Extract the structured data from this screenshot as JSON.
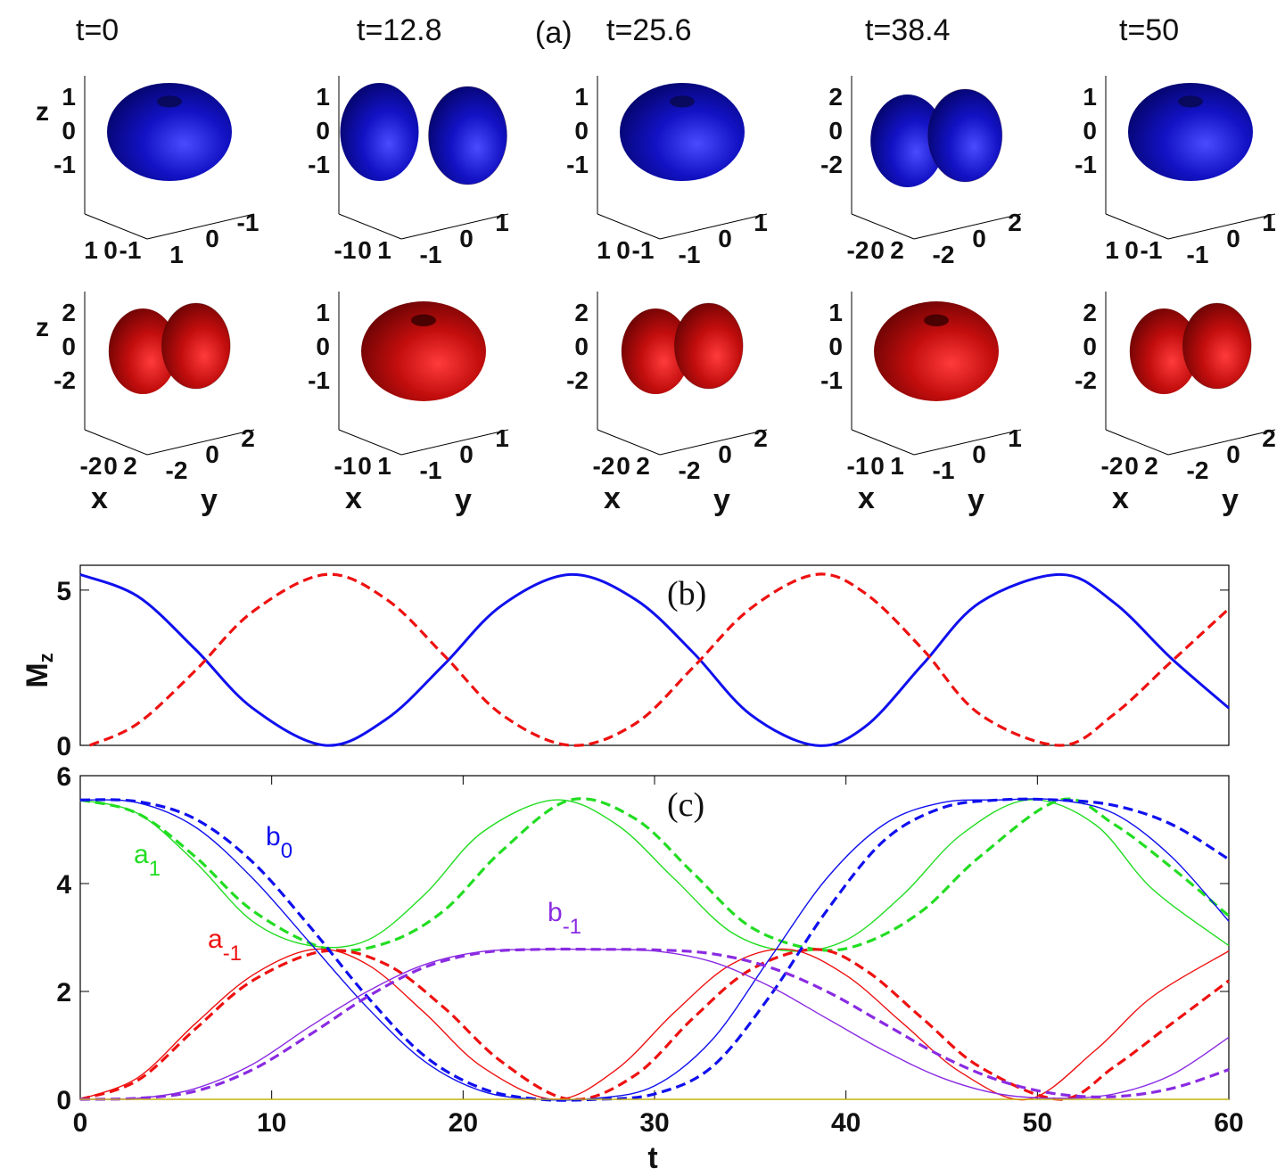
{
  "figure": {
    "panel_a_label": "(a)",
    "snapshot_times": [
      "t=0",
      "t=12.8",
      "t=25.6",
      "t=38.4",
      "t=50"
    ],
    "axis_names": {
      "x": "x",
      "y": "y",
      "z": "z"
    },
    "colors": {
      "component_1": "#1414c8",
      "component_2": "#c80f0f",
      "a1": "#22dd22",
      "a_minus1": "#ee1111",
      "b0": "#1010ee",
      "b_minus1": "#8a2be2"
    },
    "row1_shapes": [
      "torus",
      "two-lobes",
      "torus",
      "two-lobes",
      "torus"
    ],
    "row2_shapes": [
      "two-lobes",
      "torus",
      "two-lobes",
      "torus",
      "two-lobes"
    ],
    "row1_ticks": [
      {
        "z": [
          "1",
          "0",
          "-1"
        ],
        "x": [
          "1",
          "0",
          "-1"
        ],
        "y": [
          "1",
          "0",
          "-1"
        ]
      },
      {
        "z": [
          "1",
          "0",
          "-1"
        ],
        "x": [
          "-1",
          "0",
          "1"
        ],
        "y": [
          "-1",
          "0",
          "1"
        ]
      },
      {
        "z": [
          "1",
          "0",
          "-1"
        ],
        "x": [
          "1",
          "0",
          "-1"
        ],
        "y": [
          "-1",
          "0",
          "1"
        ]
      },
      {
        "z": [
          "2",
          "0",
          "-2"
        ],
        "x": [
          "-2",
          "0",
          "2"
        ],
        "y": [
          "-2",
          "0",
          "2"
        ]
      },
      {
        "z": [
          "1",
          "0",
          "-1"
        ],
        "x": [
          "1",
          "0",
          "-1"
        ],
        "y": [
          "-1",
          "0",
          "1"
        ]
      }
    ],
    "row2_ticks": [
      {
        "z": [
          "2",
          "0",
          "-2"
        ],
        "x": [
          "-2",
          "0",
          "2"
        ],
        "y": [
          "-2",
          "0",
          "2"
        ]
      },
      {
        "z": [
          "1",
          "0",
          "-1"
        ],
        "x": [
          "-1",
          "0",
          "1"
        ],
        "y": [
          "-1",
          "0",
          "1"
        ]
      },
      {
        "z": [
          "2",
          "0",
          "-2"
        ],
        "x": [
          "-2",
          "0",
          "2"
        ],
        "y": [
          "-2",
          "0",
          "2"
        ]
      },
      {
        "z": [
          "1",
          "0",
          "-1"
        ],
        "x": [
          "-1",
          "0",
          "1"
        ],
        "y": [
          "-1",
          "0",
          "1"
        ]
      },
      {
        "z": [
          "2",
          "0",
          "-2"
        ],
        "x": [
          "-2",
          "0",
          "2"
        ],
        "y": [
          "-2",
          "0",
          "2"
        ]
      }
    ]
  },
  "chart_data": [
    {
      "type": "line",
      "panel": "(b)",
      "ylabel": "M",
      "ylabel_sub": "z",
      "xlim": [
        0,
        60
      ],
      "ylim": [
        0,
        5.8
      ],
      "yticks": [
        0,
        5
      ],
      "series": [
        {
          "name": "M_z component 1 (solid blue)",
          "style": "solid",
          "color": "#1010ee",
          "x": [
            0,
            3,
            6,
            9,
            12.8,
            16,
            19,
            22,
            25.6,
            29,
            32,
            35,
            38.4,
            41,
            44,
            47,
            51.2,
            54,
            57,
            60
          ],
          "y": [
            5.5,
            4.8,
            3.1,
            1.2,
            0.0,
            0.85,
            2.6,
            4.5,
            5.5,
            4.7,
            3.0,
            1.0,
            0.0,
            0.6,
            2.6,
            4.6,
            5.5,
            4.6,
            2.8,
            1.2
          ]
        },
        {
          "name": "M_z component 2 (dashed red)",
          "style": "dashed",
          "color": "#ee1111",
          "x": [
            0.5,
            3,
            6,
            9,
            12.8,
            16,
            19,
            22,
            25.6,
            29,
            32,
            35,
            38.4,
            41,
            44,
            47,
            51.2,
            54,
            57,
            60
          ],
          "y": [
            0.0,
            0.7,
            2.4,
            4.3,
            5.5,
            4.7,
            2.9,
            1.0,
            0.0,
            0.7,
            2.5,
            4.4,
            5.5,
            4.9,
            3.1,
            1.0,
            0.0,
            1.0,
            2.7,
            4.4
          ]
        }
      ]
    },
    {
      "type": "line",
      "panel": "(c)",
      "xlabel": "t",
      "xlim": [
        0,
        60
      ],
      "ylim": [
        0,
        6
      ],
      "xticks": [
        0,
        10,
        20,
        30,
        40,
        50,
        60
      ],
      "yticks": [
        0,
        2,
        4,
        6
      ],
      "labels": [
        {
          "text": "a",
          "sub": "1",
          "color": "#22dd22"
        },
        {
          "text": "b",
          "sub": "0",
          "color": "#1010ee"
        },
        {
          "text": "a",
          "sub": "-1",
          "color": "#ee1111"
        },
        {
          "text": "b",
          "sub": "-1",
          "color": "#8a2be2"
        }
      ],
      "series": [
        {
          "name": "a_1 solid",
          "style": "solid",
          "color": "#22dd22",
          "x": [
            0,
            3,
            6,
            9,
            12,
            15,
            18,
            21,
            24.8,
            28,
            31,
            34,
            37,
            40,
            43,
            46,
            49.5,
            53,
            56,
            60
          ],
          "y": [
            5.55,
            5.3,
            4.4,
            3.3,
            2.85,
            2.95,
            3.8,
            4.95,
            5.55,
            5.1,
            4.1,
            3.1,
            2.75,
            2.95,
            3.8,
            4.9,
            5.55,
            5.1,
            3.9,
            2.85
          ]
        },
        {
          "name": "a_1 dashed",
          "style": "dashed",
          "color": "#22dd22",
          "x": [
            0,
            3,
            6,
            9,
            12.8,
            16,
            19,
            22,
            25.6,
            29,
            32,
            35,
            38.4,
            41,
            44,
            47,
            51.2,
            54,
            57,
            60
          ],
          "y": [
            5.55,
            5.3,
            4.5,
            3.5,
            2.8,
            2.9,
            3.5,
            4.6,
            5.55,
            5.2,
            4.2,
            3.2,
            2.78,
            2.9,
            3.5,
            4.5,
            5.55,
            5.1,
            4.3,
            3.4
          ]
        },
        {
          "name": "a_-1 solid",
          "style": "solid",
          "color": "#ee1111",
          "x": [
            0,
            3,
            6,
            9,
            12.2,
            15,
            18,
            21,
            24.8,
            28,
            31,
            34,
            37,
            40,
            43,
            46,
            49.5,
            53,
            56,
            60
          ],
          "y": [
            0.0,
            0.4,
            1.4,
            2.3,
            2.78,
            2.5,
            1.6,
            0.6,
            0.0,
            0.55,
            1.6,
            2.5,
            2.78,
            2.3,
            1.4,
            0.5,
            0.0,
            0.9,
            1.9,
            2.75
          ]
        },
        {
          "name": "a_-1 dashed",
          "style": "dashed",
          "color": "#ee1111",
          "x": [
            0,
            3,
            6,
            9,
            12.8,
            16,
            19,
            22,
            25.6,
            29,
            32,
            35,
            38.4,
            41,
            44,
            47,
            51.2,
            54,
            57,
            60
          ],
          "y": [
            0.0,
            0.35,
            1.3,
            2.2,
            2.75,
            2.5,
            1.7,
            0.7,
            0.0,
            0.45,
            1.5,
            2.4,
            2.78,
            2.4,
            1.5,
            0.6,
            0.0,
            0.6,
            1.4,
            2.2
          ]
        },
        {
          "name": "b_0 solid",
          "style": "solid",
          "color": "#1010ee",
          "x": [
            0,
            3,
            6,
            9,
            12,
            15,
            18,
            21,
            24,
            27,
            30,
            33,
            36,
            39,
            42,
            45,
            48,
            51,
            54,
            57,
            60
          ],
          "y": [
            5.55,
            5.5,
            5.05,
            4.1,
            2.9,
            1.7,
            0.7,
            0.15,
            0.0,
            0.02,
            0.25,
            1.1,
            2.6,
            4.1,
            5.1,
            5.5,
            5.55,
            5.55,
            5.3,
            4.5,
            3.3
          ]
        },
        {
          "name": "b_0 dashed",
          "style": "dashed",
          "color": "#1010ee",
          "x": [
            0,
            3,
            6,
            9,
            12,
            15,
            18,
            21,
            24,
            27,
            30,
            33,
            36,
            39,
            42,
            45,
            48,
            51,
            54,
            57,
            60
          ],
          "y": [
            5.55,
            5.52,
            5.2,
            4.4,
            3.2,
            1.9,
            0.8,
            0.2,
            0.0,
            0.0,
            0.1,
            0.6,
            1.9,
            3.5,
            4.8,
            5.4,
            5.55,
            5.55,
            5.45,
            5.1,
            4.45
          ]
        },
        {
          "name": "b_-1 solid",
          "style": "solid",
          "color": "#8a2be2",
          "x": [
            0,
            3,
            6,
            9,
            12,
            15,
            18,
            21,
            24,
            27,
            30,
            33,
            36,
            39,
            42,
            45,
            48,
            51,
            54,
            57,
            60
          ],
          "y": [
            0.0,
            0.02,
            0.2,
            0.65,
            1.35,
            2.0,
            2.5,
            2.74,
            2.78,
            2.78,
            2.75,
            2.55,
            2.1,
            1.5,
            0.9,
            0.4,
            0.1,
            0.02,
            0.1,
            0.45,
            1.15
          ]
        },
        {
          "name": "b_-1 dashed",
          "style": "dashed",
          "color": "#8a2be2",
          "x": [
            0,
            3,
            6,
            9,
            12,
            15,
            18,
            21,
            24,
            27,
            30,
            33,
            36,
            39,
            42,
            45,
            48,
            51,
            54,
            57,
            60
          ],
          "y": [
            0.0,
            0.02,
            0.15,
            0.55,
            1.2,
            1.9,
            2.45,
            2.72,
            2.78,
            2.78,
            2.77,
            2.7,
            2.45,
            2.0,
            1.4,
            0.8,
            0.35,
            0.1,
            0.05,
            0.2,
            0.55
          ]
        }
      ]
    }
  ]
}
